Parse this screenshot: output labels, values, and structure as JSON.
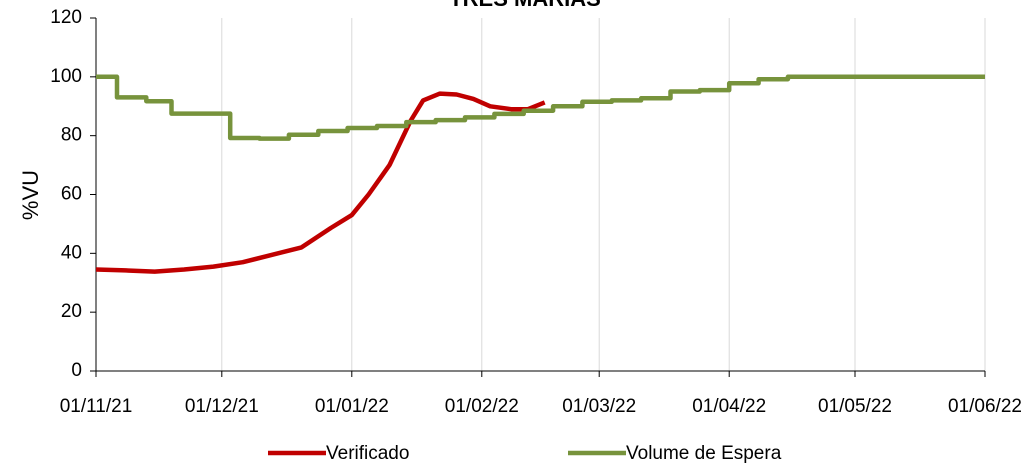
{
  "chart_data": {
    "type": "line",
    "title": "TRÊS MARIAS",
    "y_label": "%VU",
    "xlim": [
      "2021-11-01",
      "2022-06-01"
    ],
    "xticks": [
      {
        "value": "2021-11-01",
        "label": "01/11/21"
      },
      {
        "value": "2021-12-01",
        "label": "01/12/21"
      },
      {
        "value": "2022-01-01",
        "label": "01/01/22"
      },
      {
        "value": "2022-02-01",
        "label": "01/02/22"
      },
      {
        "value": "2022-03-01",
        "label": "01/03/22"
      },
      {
        "value": "2022-04-01",
        "label": "01/04/22"
      },
      {
        "value": "2022-05-01",
        "label": "01/05/22"
      },
      {
        "value": "2022-06-01",
        "label": "01/06/22"
      }
    ],
    "ylim": [
      0,
      120
    ],
    "yticks": [
      0,
      20,
      40,
      60,
      80,
      100,
      120
    ],
    "grid": true,
    "legend": "bottom",
    "series": [
      {
        "name": "Verificado",
        "color": "#c00000",
        "x": [
          "2021-11-01",
          "2021-11-08",
          "2021-11-15",
          "2021-11-22",
          "2021-11-29",
          "2021-12-06",
          "2021-12-13",
          "2021-12-20",
          "2021-12-27",
          "2022-01-01",
          "2022-01-05",
          "2022-01-10",
          "2022-01-15",
          "2022-01-18",
          "2022-01-22",
          "2022-01-26",
          "2022-01-30",
          "2022-02-03",
          "2022-02-08",
          "2022-02-12",
          "2022-02-16"
        ],
        "values": [
          34.5,
          34.2,
          33.8,
          34.5,
          35.5,
          37,
          39.5,
          42,
          48.6,
          53,
          60,
          70,
          85,
          92,
          94.3,
          94,
          92.5,
          90,
          89,
          89,
          91.3
        ]
      },
      {
        "name": "Volume de Espera",
        "color": "#77933c",
        "x": [
          "2021-11-01",
          "2021-11-06",
          "2021-11-06",
          "2021-11-13",
          "2021-11-13",
          "2021-11-19",
          "2021-11-19",
          "2021-12-03",
          "2021-12-03",
          "2021-12-10",
          "2021-12-10",
          "2021-12-17",
          "2021-12-17",
          "2021-12-24",
          "2021-12-24",
          "2021-12-31",
          "2021-12-31",
          "2022-01-07",
          "2022-01-07",
          "2022-01-14",
          "2022-01-14",
          "2022-01-21",
          "2022-01-21",
          "2022-01-28",
          "2022-01-28",
          "2022-02-04",
          "2022-02-04",
          "2022-02-11",
          "2022-02-11",
          "2022-02-18",
          "2022-02-18",
          "2022-02-25",
          "2022-02-25",
          "2022-03-04",
          "2022-03-04",
          "2022-03-11",
          "2022-03-11",
          "2022-03-18",
          "2022-03-18",
          "2022-03-25",
          "2022-03-25",
          "2022-04-01",
          "2022-04-01",
          "2022-04-08",
          "2022-04-08",
          "2022-04-15",
          "2022-04-15",
          "2022-06-01"
        ],
        "values": [
          100,
          100,
          93,
          93,
          91.7,
          91.7,
          87.5,
          87.5,
          79.2,
          79.2,
          79,
          79,
          80.3,
          80.3,
          81.6,
          81.6,
          82.6,
          82.6,
          83.3,
          83.3,
          84.6,
          84.6,
          85.3,
          85.3,
          86.2,
          86.2,
          87.4,
          87.4,
          88.5,
          88.5,
          90,
          90,
          91.5,
          91.5,
          92,
          92,
          92.7,
          92.7,
          95,
          95,
          95.5,
          95.5,
          97.8,
          97.8,
          99.2,
          99.2,
          100,
          100
        ]
      }
    ]
  }
}
